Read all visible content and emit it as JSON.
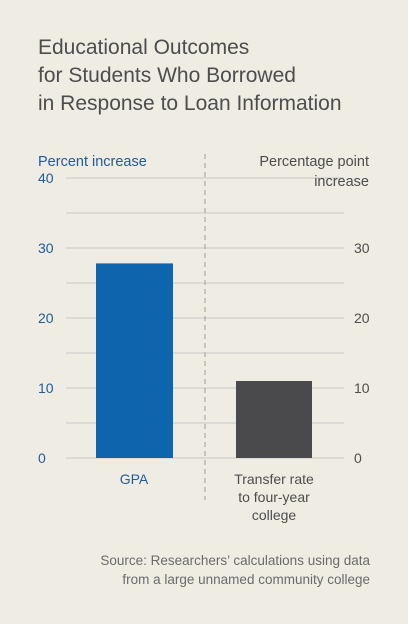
{
  "chart_data": {
    "type": "bar",
    "title_lines": [
      "Educational Outcomes",
      "for Students Who Borrowed",
      "in Response to Loan Information"
    ],
    "left_axis": {
      "label": "Percent increase",
      "range": [
        0,
        40
      ],
      "ticks": [
        "0",
        "10",
        "20",
        "30",
        "40"
      ]
    },
    "right_axis": {
      "label_lines": [
        "Percentage point",
        "increase"
      ],
      "range": [
        0,
        40
      ],
      "ticks": [
        "0",
        "10",
        "20",
        "30"
      ]
    },
    "categories": [
      {
        "label_lines": [
          "GPA"
        ],
        "value": 27.8,
        "axis": "left",
        "color": "#0f65ad"
      },
      {
        "label_lines": [
          "Transfer rate",
          "to four-year",
          "college"
        ],
        "value": 11,
        "axis": "right",
        "color": "#4a4a4c"
      }
    ],
    "grid": true,
    "source_lines": [
      "Source: Researchers’ calculations using data",
      "from a large unnamed community college"
    ],
    "colors": {
      "background": "#eeece3",
      "title": "#4d4d4d",
      "left_axis": "#1f5c9c",
      "right_axis": "#4d4d4d",
      "grid": "#c8c8c4",
      "divider": "#a8a8a8",
      "source": "#6b6b6b"
    }
  }
}
